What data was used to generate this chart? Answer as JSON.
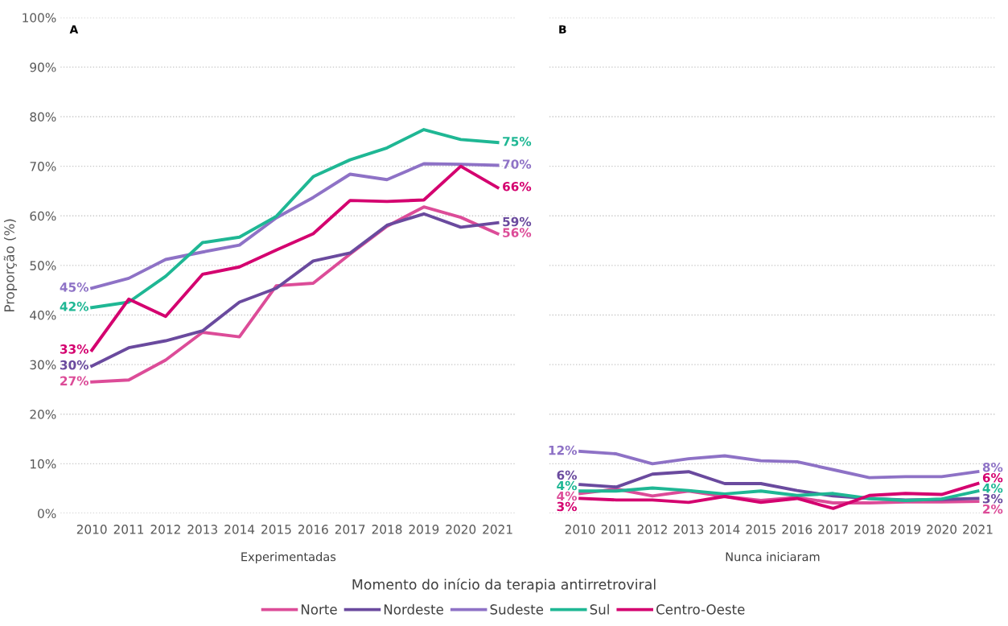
{
  "chart_data": [
    {
      "type": "line",
      "title": "A",
      "xlabel": "Experimentadas",
      "ylabel": "Proporção (%)",
      "categories": [
        "2010",
        "2011",
        "2012",
        "2013",
        "2014",
        "2015",
        "2016",
        "2017",
        "2018",
        "2019",
        "2020",
        "2021"
      ],
      "ylim": [
        0,
        100
      ],
      "yticks": [
        {
          "value": 0,
          "label": "0%"
        },
        {
          "value": 10,
          "label": "10%"
        },
        {
          "value": 20,
          "label": "20%"
        },
        {
          "value": 30,
          "label": "30%"
        },
        {
          "value": 40,
          "label": "40%"
        },
        {
          "value": 50,
          "label": "50%"
        },
        {
          "value": 60,
          "label": "60%"
        },
        {
          "value": 70,
          "label": "70%"
        },
        {
          "value": 80,
          "label": "80%"
        },
        {
          "value": 90,
          "label": "90%"
        },
        {
          "value": 100,
          "label": "100%"
        }
      ],
      "grid": "y",
      "legend": "bottom",
      "marker": "none",
      "line_style": "solid",
      "annotations": [
        "Momento do início da terapia antirretroviral"
      ],
      "series": [
        {
          "name": "Norte",
          "color": "#dc4c98",
          "values": [
            26.5,
            26.9,
            30.9,
            36.5,
            35.6,
            45.9,
            46.4,
            52.3,
            57.9,
            61.8,
            59.7,
            56.4
          ],
          "value_labels": [
            "27%",
            null,
            null,
            null,
            null,
            null,
            null,
            null,
            null,
            null,
            null,
            "56%"
          ]
        },
        {
          "name": "Nordeste",
          "color": "#6a4a9e",
          "values": [
            29.7,
            33.4,
            34.8,
            36.8,
            42.6,
            45.4,
            50.9,
            52.5,
            58.1,
            60.4,
            57.7,
            58.6
          ],
          "value_labels": [
            "30%",
            null,
            null,
            null,
            null,
            null,
            null,
            null,
            null,
            null,
            null,
            "59%"
          ]
        },
        {
          "name": "Sudeste",
          "color": "#8e72c6",
          "values": [
            45.4,
            47.4,
            51.2,
            52.7,
            54.1,
            59.6,
            63.7,
            68.4,
            67.3,
            70.5,
            70.4,
            70.2
          ],
          "value_labels": [
            "45%",
            null,
            null,
            null,
            null,
            null,
            null,
            null,
            null,
            null,
            null,
            "70%"
          ]
        },
        {
          "name": "Sul",
          "color": "#1fb794",
          "values": [
            41.5,
            42.6,
            47.8,
            54.6,
            55.7,
            59.9,
            67.9,
            71.3,
            73.7,
            77.4,
            75.4,
            74.8
          ],
          "value_labels": [
            "42%",
            null,
            null,
            null,
            null,
            null,
            null,
            null,
            null,
            null,
            null,
            "75%"
          ]
        },
        {
          "name": "Centro-Oeste",
          "color": "#d4006f",
          "values": [
            32.9,
            43.2,
            39.7,
            48.2,
            49.7,
            53.1,
            56.4,
            63.1,
            62.9,
            63.2,
            70.0,
            65.7
          ],
          "value_labels": [
            "33%",
            null,
            null,
            null,
            null,
            null,
            null,
            null,
            null,
            null,
            null,
            "66%"
          ]
        }
      ]
    },
    {
      "type": "line",
      "title": "B",
      "xlabel": "Nunca iniciaram",
      "categories": [
        "2010",
        "2011",
        "2012",
        "2013",
        "2014",
        "2015",
        "2016",
        "2017",
        "2018",
        "2019",
        "2020",
        "2021"
      ],
      "ylim": [
        0,
        100
      ],
      "yticks": [
        0,
        10,
        20,
        30,
        40,
        50,
        60,
        70,
        80,
        90,
        100
      ],
      "tick_labels": "x",
      "grid": "y",
      "marker": "none",
      "line_style": "solid",
      "series": [
        {
          "color": "#dc4c98",
          "values": [
            4.0,
            4.9,
            3.5,
            4.5,
            3.4,
            2.6,
            3.2,
            2.1,
            2.1,
            2.3,
            2.3,
            2.4
          ],
          "value_labels": [
            "4%",
            null,
            null,
            null,
            null,
            null,
            null,
            null,
            null,
            null,
            null,
            "2%"
          ]
        },
        {
          "color": "#6a4a9e",
          "values": [
            5.8,
            5.3,
            7.9,
            8.4,
            6.0,
            6.0,
            4.6,
            3.5,
            3.0,
            2.7,
            2.8,
            3.0
          ],
          "value_labels": [
            "6%",
            null,
            null,
            null,
            null,
            null,
            null,
            null,
            null,
            null,
            null,
            "3%"
          ]
        },
        {
          "color": "#8e72c6",
          "values": [
            12.5,
            12.0,
            10.0,
            11.0,
            11.6,
            10.6,
            10.4,
            8.8,
            7.2,
            7.4,
            7.4,
            8.4
          ],
          "value_labels": [
            "12%",
            null,
            null,
            null,
            null,
            null,
            null,
            null,
            null,
            null,
            null,
            "8%"
          ]
        },
        {
          "color": "#1fb794",
          "values": [
            4.5,
            4.5,
            5.1,
            4.6,
            3.9,
            4.5,
            3.6,
            4.0,
            3.0,
            2.6,
            2.9,
            4.5
          ],
          "value_labels": [
            "4%",
            null,
            null,
            null,
            null,
            null,
            null,
            null,
            null,
            null,
            null,
            "4%"
          ]
        },
        {
          "color": "#d4006f",
          "values": [
            3.0,
            2.7,
            2.7,
            2.2,
            3.4,
            2.2,
            3.0,
            1.0,
            3.6,
            4.0,
            3.8,
            6.0
          ],
          "value_labels": [
            "3%",
            null,
            null,
            null,
            null,
            null,
            null,
            null,
            null,
            null,
            null,
            "6%"
          ]
        }
      ]
    }
  ]
}
